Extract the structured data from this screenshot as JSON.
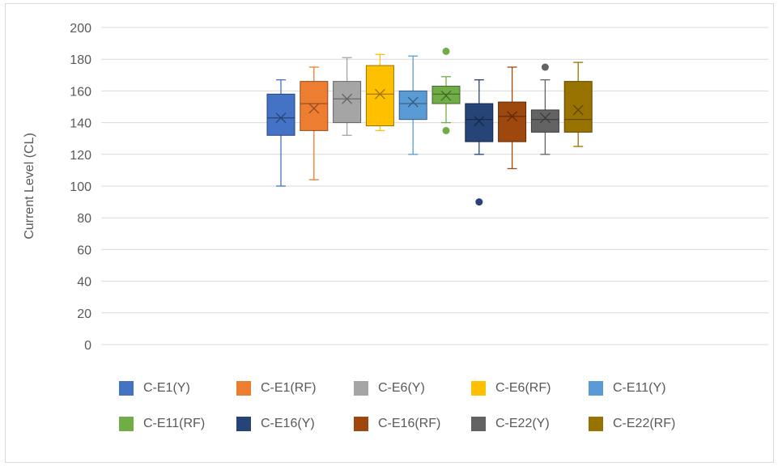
{
  "chart_data": {
    "type": "box",
    "title": "",
    "xlabel": "",
    "ylabel": "Current Level (CL)",
    "ylim": [
      0,
      200
    ],
    "yticks": [
      0,
      20,
      40,
      60,
      80,
      100,
      120,
      140,
      160,
      180,
      200
    ],
    "grid": true,
    "legend_position": "bottom",
    "series": [
      {
        "name": "C-E1(Y)",
        "color": "#4472c4",
        "min": 100,
        "q1": 132,
        "median": 143,
        "mean": 143,
        "q3": 158,
        "max": 167,
        "outliers": []
      },
      {
        "name": "C-E1(RF)",
        "color": "#ed7d31",
        "min": 104,
        "q1": 135,
        "median": 152,
        "mean": 149,
        "q3": 166,
        "max": 175,
        "outliers": []
      },
      {
        "name": "C-E6(Y)",
        "color": "#a5a5a5",
        "min": 132,
        "q1": 140,
        "median": 155,
        "mean": 155,
        "q3": 166,
        "max": 181,
        "outliers": []
      },
      {
        "name": "C-E6(RF)",
        "color": "#ffc000",
        "min": 135,
        "q1": 138,
        "median": 158,
        "mean": 158,
        "q3": 176,
        "max": 183,
        "outliers": []
      },
      {
        "name": "C-E11(Y)",
        "color": "#5b9bd5",
        "min": 120,
        "q1": 142,
        "median": 152,
        "mean": 153,
        "q3": 160,
        "max": 182,
        "outliers": []
      },
      {
        "name": "C-E11(RF)",
        "color": "#70ad47",
        "min": 140,
        "q1": 152,
        "median": 158,
        "mean": 157,
        "q3": 163,
        "max": 169,
        "outliers": [
          135,
          185
        ]
      },
      {
        "name": "C-E16(Y)",
        "color": "#264478",
        "min": 120,
        "q1": 128,
        "median": 142,
        "mean": 141,
        "q3": 152,
        "max": 167,
        "outliers": [
          90
        ]
      },
      {
        "name": "C-E16(RF)",
        "color": "#9e480e",
        "min": 111,
        "q1": 128,
        "median": 144,
        "mean": 144,
        "q3": 153,
        "max": 175,
        "outliers": []
      },
      {
        "name": "C-E22(Y)",
        "color": "#636363",
        "min": 120,
        "q1": 134,
        "median": 142,
        "mean": 143,
        "q3": 148,
        "max": 167,
        "outliers": [
          175
        ]
      },
      {
        "name": "C-E22(RF)",
        "color": "#997300",
        "min": 125,
        "q1": 134,
        "median": 142,
        "mean": 148,
        "q3": 166,
        "max": 178,
        "outliers": []
      }
    ]
  }
}
